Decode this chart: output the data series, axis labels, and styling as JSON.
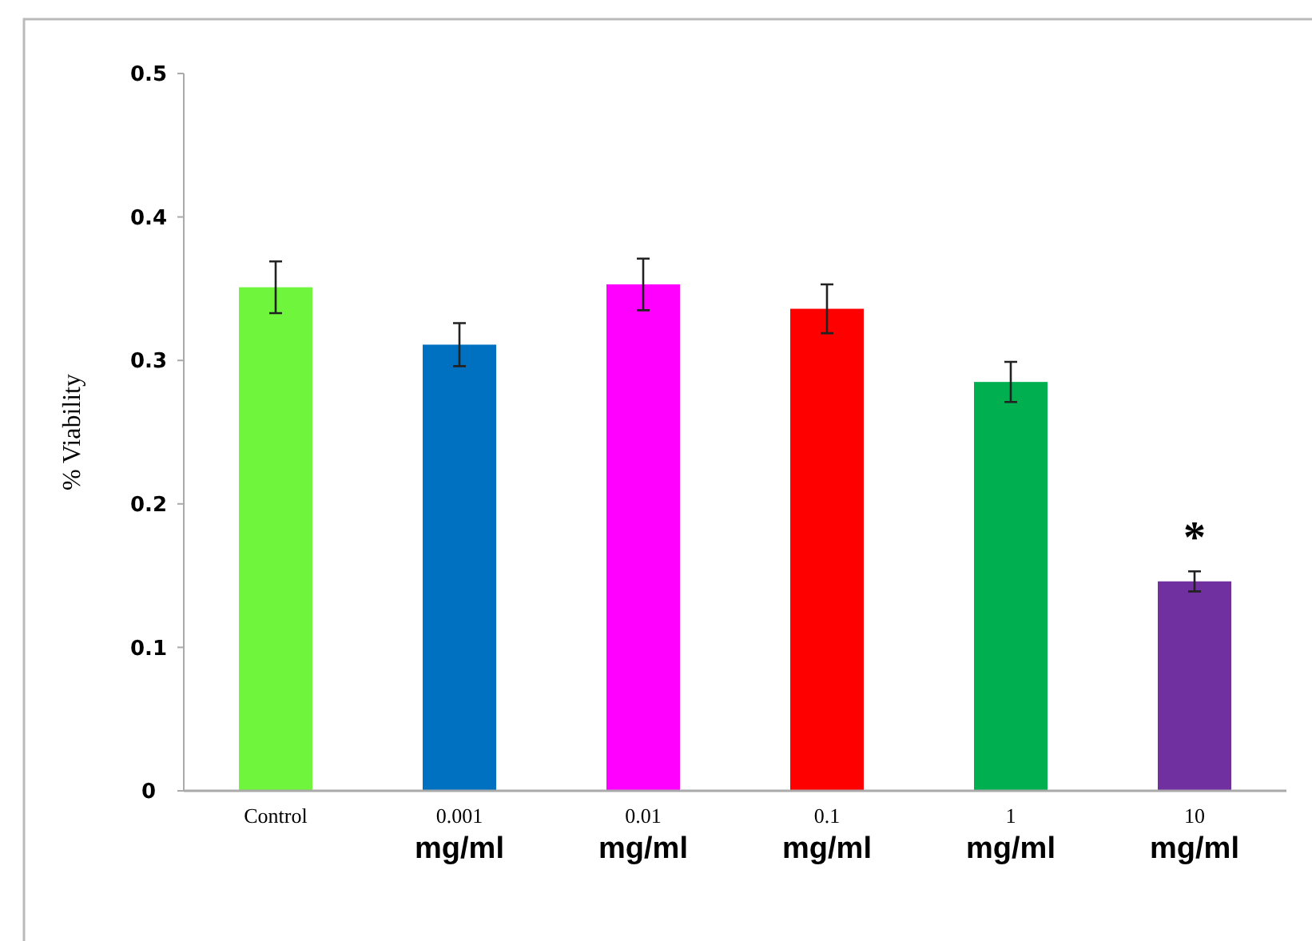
{
  "chart_data": {
    "type": "bar",
    "ylabel": "% Viability",
    "categories": [
      "Control",
      "0.001\nmg/ml",
      "0.01\nmg/ml",
      "0.1\nmg/ml",
      "1\nmg/ml",
      "10\nmg/ml"
    ],
    "values": [
      0.351,
      0.311,
      0.353,
      0.336,
      0.285,
      0.146
    ],
    "colors": [
      "#6ef53c",
      "#0070c0",
      "#ff00ff",
      "#ff0000",
      "#00b050",
      "#7030a0"
    ],
    "errors": [
      0.018,
      0.015,
      0.018,
      0.017,
      0.014,
      0.007
    ],
    "ylim": [
      0,
      0.5
    ],
    "yticks": [
      0,
      0.1,
      0.2,
      0.3,
      0.4,
      0.5
    ],
    "grid": false,
    "annotations": [
      "*"
    ]
  }
}
